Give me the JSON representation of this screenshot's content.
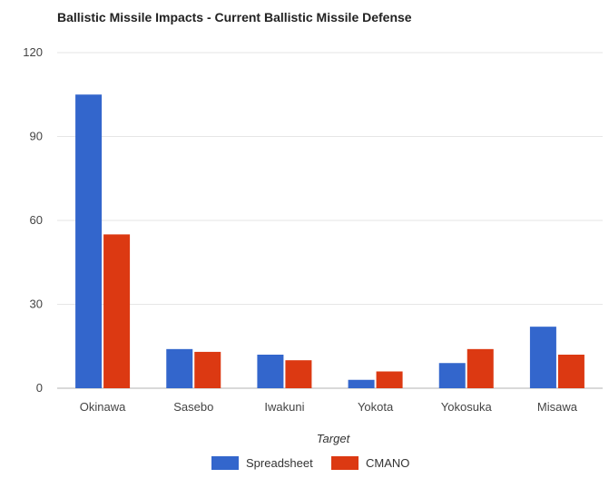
{
  "chart_data": {
    "type": "bar",
    "title": "Ballistic Missile Impacts - Current Ballistic Missile Defense",
    "xlabel": "Target",
    "ylabel": "",
    "categories": [
      "Okinawa",
      "Sasebo",
      "Iwakuni",
      "Yokota",
      "Yokosuka",
      "Misawa"
    ],
    "series": [
      {
        "name": "Spreadsheet",
        "color": "#3366cc",
        "values": [
          105,
          14,
          12,
          3,
          9,
          22
        ]
      },
      {
        "name": "CMANO",
        "color": "#dc3912",
        "values": [
          55,
          13,
          10,
          6,
          14,
          12
        ]
      }
    ],
    "ylim": [
      0,
      120
    ],
    "yticks": [
      0,
      30,
      60,
      90,
      120
    ],
    "grid": true,
    "legend_position": "bottom"
  }
}
